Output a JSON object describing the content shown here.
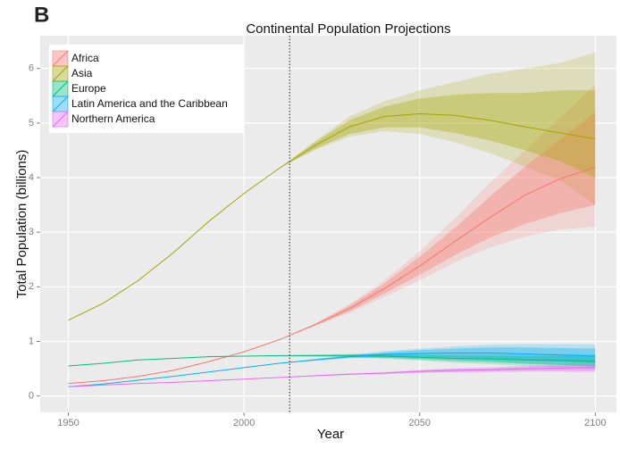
{
  "panel_label": "B",
  "chart_data": {
    "type": "line",
    "title": "Continental Population Projections",
    "x_label": "Year",
    "y_label": "Total Population (billions)",
    "x": [
      1950,
      1960,
      1970,
      1980,
      1990,
      2000,
      2010,
      2020,
      2030,
      2040,
      2050,
      2060,
      2070,
      2080,
      2090,
      2100
    ],
    "xlim": [
      1942,
      2106
    ],
    "ylim": [
      -0.3,
      6.6
    ],
    "xticks": [
      1950,
      2000,
      2050,
      2100
    ],
    "yticks": [
      0,
      1,
      2,
      3,
      4,
      5,
      6
    ],
    "grid": true,
    "legend": "top-left",
    "reference_line_x": 2013,
    "series": [
      {
        "name": "Africa",
        "color": "#F8766D",
        "values": [
          0.23,
          0.28,
          0.36,
          0.47,
          0.63,
          0.81,
          1.03,
          1.3,
          1.6,
          1.97,
          2.38,
          2.83,
          3.27,
          3.68,
          3.98,
          4.19
        ],
        "lower_80": [
          null,
          null,
          null,
          null,
          null,
          null,
          1.03,
          1.29,
          1.55,
          1.88,
          2.22,
          2.58,
          2.9,
          3.15,
          3.35,
          3.5
        ],
        "upper_80": [
          null,
          null,
          null,
          null,
          null,
          null,
          1.03,
          1.31,
          1.65,
          2.06,
          2.55,
          3.08,
          3.65,
          4.2,
          4.7,
          5.2
        ],
        "lower_95": [
          null,
          null,
          null,
          null,
          null,
          null,
          1.03,
          1.28,
          1.52,
          1.82,
          2.12,
          2.45,
          2.72,
          2.92,
          3.05,
          3.1
        ],
        "upper_95": [
          null,
          null,
          null,
          null,
          null,
          null,
          1.03,
          1.32,
          1.68,
          2.12,
          2.65,
          3.25,
          3.9,
          4.5,
          5.1,
          5.7
        ]
      },
      {
        "name": "Asia",
        "color": "#A3A500",
        "values": [
          1.39,
          1.7,
          2.12,
          2.63,
          3.2,
          3.71,
          4.17,
          4.58,
          4.93,
          5.12,
          5.17,
          5.14,
          5.05,
          4.93,
          4.82,
          4.71
        ],
        "lower_80": [
          null,
          null,
          null,
          null,
          null,
          null,
          4.17,
          4.52,
          4.8,
          4.92,
          4.92,
          4.82,
          4.68,
          4.5,
          4.3,
          4.0
        ],
        "upper_80": [
          null,
          null,
          null,
          null,
          null,
          null,
          4.17,
          4.64,
          5.05,
          5.3,
          5.45,
          5.52,
          5.55,
          5.55,
          5.6,
          5.6
        ],
        "lower_95": [
          null,
          null,
          null,
          null,
          null,
          null,
          4.17,
          4.5,
          4.75,
          4.85,
          4.8,
          4.65,
          4.45,
          4.2,
          3.95,
          3.5
        ],
        "upper_95": [
          null,
          null,
          null,
          null,
          null,
          null,
          4.17,
          4.66,
          5.12,
          5.4,
          5.6,
          5.75,
          5.9,
          6.0,
          6.1,
          6.3
        ]
      },
      {
        "name": "Europe",
        "color": "#00BF7D",
        "values": [
          0.55,
          0.6,
          0.66,
          0.69,
          0.72,
          0.73,
          0.74,
          0.74,
          0.74,
          0.73,
          0.71,
          0.69,
          0.68,
          0.66,
          0.65,
          0.64
        ],
        "lower_80": [
          null,
          null,
          null,
          null,
          null,
          null,
          0.74,
          0.73,
          0.72,
          0.7,
          0.67,
          0.64,
          0.62,
          0.59,
          0.57,
          0.55
        ],
        "upper_80": [
          null,
          null,
          null,
          null,
          null,
          null,
          0.74,
          0.75,
          0.76,
          0.76,
          0.75,
          0.74,
          0.74,
          0.73,
          0.73,
          0.73
        ],
        "lower_95": [
          null,
          null,
          null,
          null,
          null,
          null,
          0.74,
          0.72,
          0.71,
          0.68,
          0.65,
          0.61,
          0.58,
          0.55,
          0.52,
          0.5
        ],
        "upper_95": [
          null,
          null,
          null,
          null,
          null,
          null,
          0.74,
          0.76,
          0.77,
          0.78,
          0.78,
          0.77,
          0.77,
          0.77,
          0.77,
          0.77
        ]
      },
      {
        "name": "Latin America and the Caribbean",
        "color": "#00B0F6",
        "values": [
          0.17,
          0.22,
          0.29,
          0.36,
          0.44,
          0.52,
          0.6,
          0.66,
          0.72,
          0.76,
          0.78,
          0.79,
          0.79,
          0.77,
          0.75,
          0.73
        ],
        "lower_80": [
          null,
          null,
          null,
          null,
          null,
          null,
          0.6,
          0.65,
          0.7,
          0.72,
          0.72,
          0.71,
          0.69,
          0.66,
          0.63,
          0.6
        ],
        "upper_80": [
          null,
          null,
          null,
          null,
          null,
          null,
          0.6,
          0.67,
          0.74,
          0.8,
          0.84,
          0.87,
          0.89,
          0.89,
          0.88,
          0.87
        ],
        "lower_95": [
          null,
          null,
          null,
          null,
          null,
          null,
          0.6,
          0.64,
          0.69,
          0.7,
          0.69,
          0.67,
          0.64,
          0.6,
          0.57,
          0.53
        ],
        "upper_95": [
          null,
          null,
          null,
          null,
          null,
          null,
          0.6,
          0.68,
          0.75,
          0.82,
          0.87,
          0.91,
          0.94,
          0.95,
          0.95,
          0.95
        ]
      },
      {
        "name": "Northern America",
        "color": "#E76BF3",
        "values": [
          0.17,
          0.2,
          0.23,
          0.25,
          0.28,
          0.31,
          0.34,
          0.37,
          0.4,
          0.42,
          0.45,
          0.47,
          0.48,
          0.5,
          0.51,
          0.52
        ],
        "lower_80": [
          null,
          null,
          null,
          null,
          null,
          null,
          0.34,
          0.365,
          0.39,
          0.41,
          0.43,
          0.44,
          0.45,
          0.46,
          0.46,
          0.46
        ],
        "upper_80": [
          null,
          null,
          null,
          null,
          null,
          null,
          0.34,
          0.375,
          0.41,
          0.43,
          0.47,
          0.5,
          0.51,
          0.54,
          0.56,
          0.58
        ],
        "lower_95": [
          null,
          null,
          null,
          null,
          null,
          null,
          0.34,
          0.36,
          0.385,
          0.4,
          0.42,
          0.43,
          0.43,
          0.44,
          0.44,
          0.43
        ],
        "upper_95": [
          null,
          null,
          null,
          null,
          null,
          null,
          0.34,
          0.38,
          0.415,
          0.44,
          0.48,
          0.51,
          0.53,
          0.56,
          0.58,
          0.61
        ]
      }
    ]
  }
}
